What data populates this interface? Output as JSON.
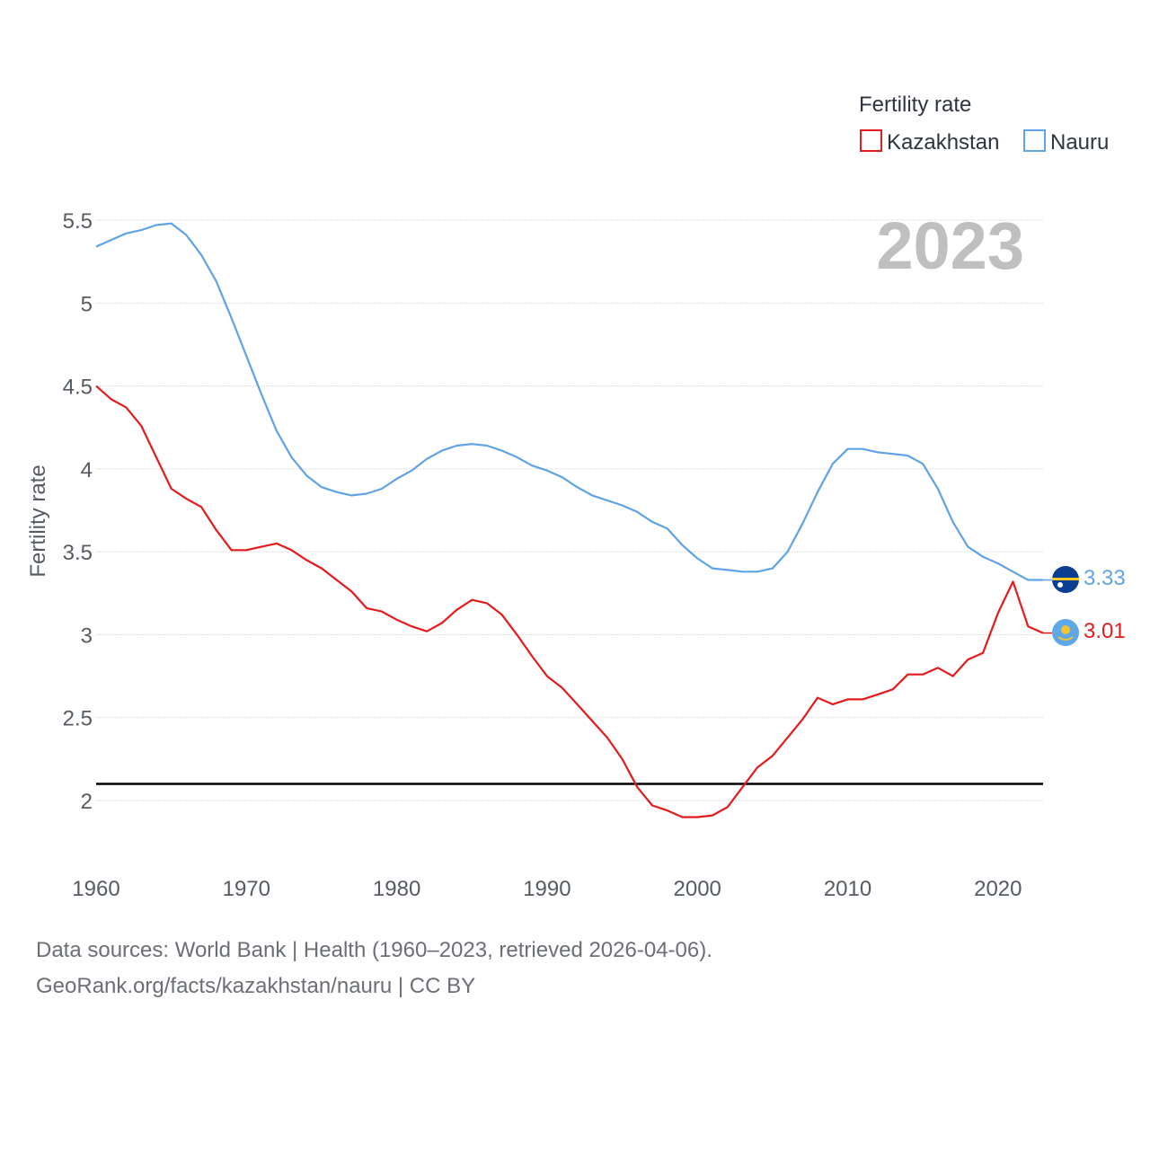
{
  "chart_data": {
    "type": "line",
    "title": "",
    "highlight_year": "2023",
    "xlabel": "",
    "ylabel": "Fertility rate",
    "xlim": [
      1960,
      2023
    ],
    "ylim": [
      1.6,
      5.7
    ],
    "x_ticks": [
      1960,
      1970,
      1980,
      1990,
      2000,
      2010,
      2020
    ],
    "y_ticks": [
      2,
      2.5,
      3,
      3.5,
      4,
      4.5,
      5,
      5.5
    ],
    "y_tick_labels": [
      "2",
      "2.5",
      "3",
      "3.5",
      "4",
      "4.5",
      "5",
      "5.5"
    ],
    "grid": true,
    "legend": {
      "title": "Fertility rate",
      "position": "top-right"
    },
    "reference_line": {
      "y": 2.1
    },
    "x": [
      1960,
      1961,
      1962,
      1963,
      1964,
      1965,
      1966,
      1967,
      1968,
      1969,
      1970,
      1971,
      1972,
      1973,
      1974,
      1975,
      1976,
      1977,
      1978,
      1979,
      1980,
      1981,
      1982,
      1983,
      1984,
      1985,
      1986,
      1987,
      1988,
      1989,
      1990,
      1991,
      1992,
      1993,
      1994,
      1995,
      1996,
      1997,
      1998,
      1999,
      2000,
      2001,
      2002,
      2003,
      2004,
      2005,
      2006,
      2007,
      2008,
      2009,
      2010,
      2011,
      2012,
      2013,
      2014,
      2015,
      2016,
      2017,
      2018,
      2019,
      2020,
      2021,
      2022,
      2023
    ],
    "series": [
      {
        "name": "Kazakhstan",
        "color": "#e41a1c",
        "end_label": "3.01",
        "flag_icon": "kazakhstan-flag-icon",
        "values": [
          4.5,
          4.42,
          4.37,
          4.26,
          4.07,
          3.88,
          3.82,
          3.77,
          3.63,
          3.51,
          3.51,
          3.53,
          3.55,
          3.51,
          3.45,
          3.4,
          3.33,
          3.26,
          3.16,
          3.14,
          3.09,
          3.05,
          3.02,
          3.07,
          3.15,
          3.21,
          3.19,
          3.12,
          3.0,
          2.87,
          2.75,
          2.68,
          2.58,
          2.48,
          2.38,
          2.25,
          2.08,
          1.97,
          1.94,
          1.9,
          1.9,
          1.91,
          1.96,
          2.08,
          2.2,
          2.27,
          2.38,
          2.49,
          2.62,
          2.58,
          2.61,
          2.61,
          2.64,
          2.67,
          2.76,
          2.76,
          2.8,
          2.75,
          2.85,
          2.89,
          3.13,
          3.32,
          3.05,
          3.01
        ]
      },
      {
        "name": "Nauru",
        "color": "#5fa3e6",
        "end_label": "3.33",
        "flag_icon": "nauru-flag-icon",
        "values": [
          5.34,
          5.38,
          5.42,
          5.44,
          5.47,
          5.48,
          5.41,
          5.29,
          5.13,
          4.91,
          4.68,
          4.45,
          4.23,
          4.07,
          3.96,
          3.89,
          3.86,
          3.84,
          3.85,
          3.88,
          3.94,
          3.99,
          4.06,
          4.11,
          4.14,
          4.15,
          4.14,
          4.11,
          4.07,
          4.02,
          3.99,
          3.95,
          3.89,
          3.84,
          3.81,
          3.78,
          3.74,
          3.68,
          3.64,
          3.54,
          3.46,
          3.4,
          3.39,
          3.38,
          3.38,
          3.4,
          3.5,
          3.67,
          3.86,
          4.03,
          4.12,
          4.12,
          4.1,
          4.09,
          4.08,
          4.03,
          3.88,
          3.68,
          3.53,
          3.47,
          3.43,
          3.38,
          3.33,
          3.33
        ]
      }
    ]
  },
  "footer": {
    "sources": "Data sources: World Bank | Health (1960–2023, retrieved 2026-04-06).",
    "credit": "GeoRank.org/facts/kazakhstan/nauru | CC BY"
  }
}
